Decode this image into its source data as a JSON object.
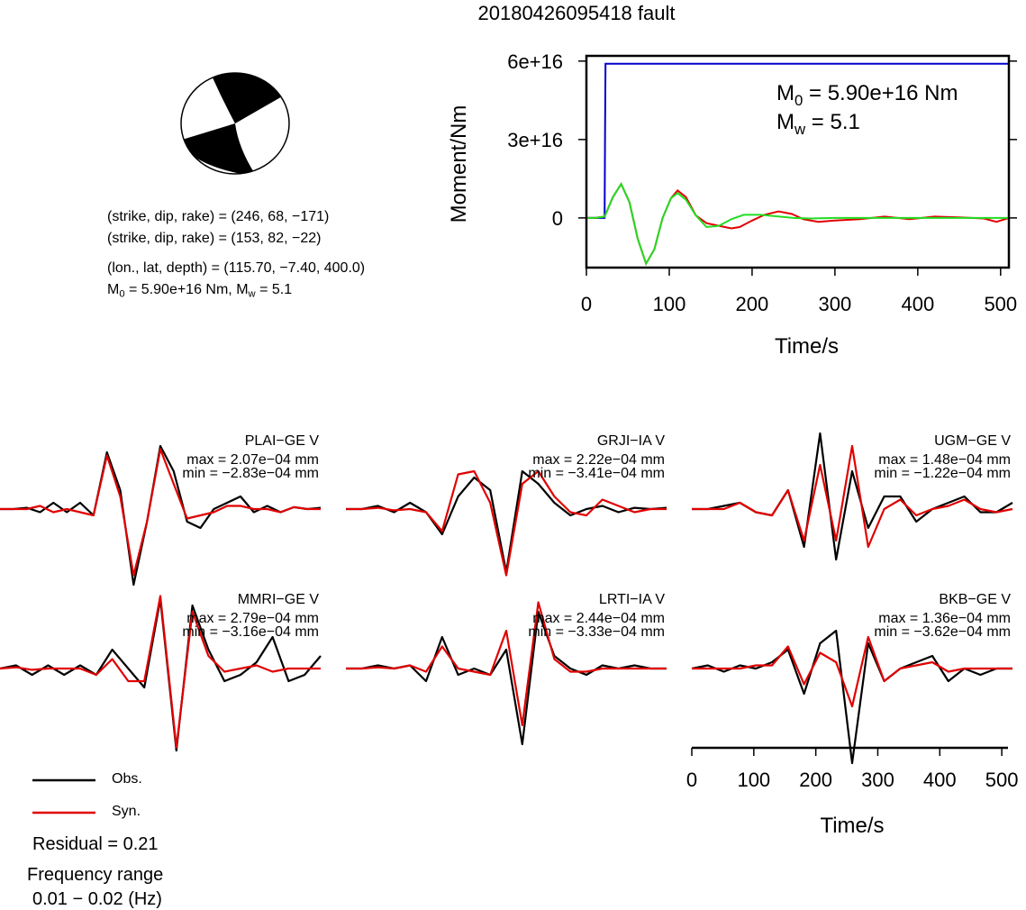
{
  "title": "20180426095418 fault",
  "mechanism": {
    "line1": "(strike, dip, rake) = (246, 68, −171)",
    "line2": "(strike, dip, rake) = (153, 82, −22)",
    "line3": "(lon., lat, depth) = (115.70, −7.40, 400.0)",
    "m0_label": "M",
    "m0_sub": "0",
    "m0_rest": " = 5.90e+16 Nm, M",
    "mw_sub": "w",
    "mw_rest": " = 5.1"
  },
  "colors": {
    "obs": "#000000",
    "syn": "#e00000",
    "mrf": "#0000cc",
    "green": "#22dd22"
  },
  "chart_data": [
    {
      "type": "line",
      "xlabel": "Time/s",
      "ylabel": "Moment/Nm",
      "xlim": [
        0,
        510
      ],
      "ylim": [
        -1.9e+16,
        6.2e+16
      ],
      "xticks": [
        0,
        100,
        200,
        300,
        400,
        500
      ],
      "yticks": [
        0,
        3e+16,
        6e+16
      ],
      "ytick_labels": [
        "0",
        "3e+16",
        "6e+16"
      ],
      "annotation": {
        "m0_text": "M",
        "m0_sub": "0",
        "m0_rest": " = 5.90e+16 Nm",
        "mw_text": "M",
        "mw_sub": "w",
        "mw_rest": " = 5.1"
      },
      "series": [
        {
          "color": "#0000cc",
          "x": [
            0,
            22,
            22.5,
            23,
            510
          ],
          "y": [
            0,
            0,
            3.3e+16,
            5.9e+16,
            5.9e+16
          ]
        },
        {
          "color": "#e00000",
          "x": [
            0,
            10,
            22,
            32,
            42,
            52,
            62,
            72,
            82,
            92,
            102,
            110,
            120,
            132,
            145,
            160,
            175,
            185,
            200,
            215,
            232,
            248,
            262,
            280,
            300,
            330,
            360,
            390,
            420,
            450,
            480,
            495,
            510
          ],
          "y": [
            0,
            0,
            500000000000000.0,
            8000000000000000.0,
            1.3e+16,
            6000000000000000.0,
            -8000000000000000.0,
            -1.75e+16,
            -1.2e+16,
            0,
            7500000000000000.0,
            1.05e+16,
            8000000000000000.0,
            1000000000000000.0,
            -2000000000000000.0,
            -3000000000000000.0,
            -4000000000000000.0,
            -3500000000000000.0,
            -1000000000000000.0,
            1200000000000000.0,
            2500000000000000.0,
            1500000000000000.0,
            -500000000000000.0,
            -1500000000000000.0,
            -1000000000000000.0,
            -500000000000000.0,
            500000000000000.0,
            -500000000000000.0,
            500000000000000.0,
            200000000000000.0,
            -200000000000000.0,
            -1500000000000000.0,
            0.0
          ]
        },
        {
          "color": "#22dd22",
          "x": [
            0,
            10,
            22,
            32,
            42,
            52,
            62,
            72,
            82,
            92,
            102,
            110,
            120,
            132,
            145,
            160,
            175,
            190,
            210,
            230,
            250,
            270,
            300,
            350,
            400,
            450,
            510
          ],
          "y": [
            0,
            0,
            500000000000000.0,
            8000000000000000.0,
            1.3e+16,
            6000000000000000.0,
            -8000000000000000.0,
            -1.75e+16,
            -1.2e+16,
            0,
            7500000000000000.0,
            9500000000000000.0,
            7000000000000000.0,
            1000000000000000.0,
            -3500000000000000.0,
            -3000000000000000.0,
            -500000000000000.0,
            1200000000000000.0,
            1200000000000000.0,
            600000000000000.0,
            0.0,
            -200000000000000.0,
            0,
            0,
            0,
            0,
            0
          ]
        }
      ]
    },
    {
      "type": "line",
      "xlabel": "Time/s",
      "xlim": [
        0,
        510
      ],
      "xticks": [
        0,
        100,
        200,
        300,
        400,
        500
      ],
      "stations": [
        {
          "name": "PLAI−GE V",
          "max_text": "max = 2.07e−04 mm",
          "min_text": "min = −2.83e−04 mm",
          "obs": [
            0,
            0,
            0.02,
            -0.05,
            0.1,
            -0.05,
            0.1,
            -0.1,
            0.9,
            0.3,
            -1.2,
            -0.2,
            1.0,
            0.6,
            -0.2,
            -0.3,
            0,
            0.1,
            0.2,
            -0.05,
            0.05,
            -0.05,
            0.03,
            0.0,
            0.02
          ],
          "syn": [
            0,
            0,
            0,
            0.05,
            -0.05,
            0,
            -0.05,
            -0.1,
            0.85,
            0.2,
            -1.05,
            -0.2,
            0.95,
            0.4,
            -0.15,
            -0.1,
            -0.05,
            0.05,
            0.05,
            0.0,
            0.0,
            -0.05,
            0.03,
            0.0,
            0.0
          ]
        },
        {
          "name": "GRJI−IA V",
          "max_text": "max = 2.22e−04 mm",
          "min_text": "min = −3.41e−04 mm",
          "obs": [
            0,
            0,
            0.05,
            -0.05,
            0.1,
            -0.05,
            -0.4,
            0.2,
            0.5,
            0.3,
            -1.0,
            0.6,
            0.4,
            0.1,
            -0.1,
            0.0,
            0.05,
            -0.05,
            0.02,
            0.0,
            0.02
          ],
          "syn": [
            0,
            0,
            0.02,
            -0.02,
            0.0,
            -0.05,
            -0.35,
            0.55,
            0.6,
            0.1,
            -1.05,
            0.4,
            0.6,
            0.2,
            -0.05,
            -0.1,
            0.15,
            0.05,
            -0.05,
            0.0,
            0.0
          ]
        },
        {
          "name": "UGM−GE V",
          "max_text": "max = 1.48e−04 mm",
          "min_text": "min = −1.22e−04 mm",
          "obs": [
            0,
            0,
            0.05,
            0.1,
            -0.05,
            -0.1,
            0.3,
            -0.6,
            1.2,
            -0.8,
            0.6,
            -0.3,
            0.2,
            0.2,
            -0.2,
            0.0,
            0.1,
            0.2,
            -0.05,
            -0.05,
            0.1
          ],
          "syn": [
            0,
            0,
            0.0,
            0.1,
            -0.05,
            -0.1,
            0.3,
            -0.5,
            0.7,
            -0.5,
            1.0,
            -0.6,
            0.0,
            0.15,
            -0.1,
            0.0,
            0.05,
            0.15,
            0.0,
            -0.05,
            0.0
          ]
        },
        {
          "name": "MMRI−GE V",
          "max_text": "max = 2.79e−04 mm",
          "min_text": "min = −3.16e−04 mm",
          "obs": [
            0,
            0.05,
            -0.1,
            0.05,
            -0.1,
            0.05,
            -0.1,
            0.3,
            0.0,
            -0.3,
            1.1,
            -1.3,
            1.0,
            0.3,
            -0.2,
            -0.1,
            0.1,
            0.5,
            -0.2,
            -0.1,
            0.2
          ],
          "syn": [
            0,
            0.02,
            -0.02,
            0.0,
            0.0,
            0.0,
            -0.1,
            0.15,
            -0.2,
            -0.2,
            1.15,
            -1.25,
            0.9,
            0.2,
            -0.05,
            0.0,
            0.05,
            -0.05,
            0.0,
            0.0,
            0.0
          ]
        },
        {
          "name": "LRTI−IA V",
          "max_text": "max = 2.44e−04 mm",
          "min_text": "min = −3.33e−04 mm",
          "obs": [
            0,
            0,
            0.05,
            0.0,
            0.05,
            -0.2,
            0.5,
            -0.1,
            0.0,
            -0.1,
            0.3,
            -1.2,
            0.9,
            0.2,
            0.0,
            -0.1,
            0.05,
            0.0,
            0.05,
            0.0,
            0.0
          ],
          "syn": [
            0,
            0,
            0.02,
            0.0,
            0.05,
            -0.05,
            0.35,
            0.0,
            -0.05,
            -0.1,
            0.6,
            -0.9,
            1.05,
            0.15,
            -0.05,
            -0.05,
            0.0,
            0.0,
            0.0,
            0.0,
            0.0
          ]
        },
        {
          "name": "BKB−GE V",
          "max_text": "max = 1.36e−04 mm",
          "min_text": "min = −3.62e−04 mm",
          "obs": [
            0,
            0.05,
            -0.05,
            0.05,
            0.0,
            0.1,
            0.3,
            -0.4,
            0.4,
            0.6,
            -1.5,
            0.4,
            -0.2,
            0.0,
            0.1,
            0.2,
            -0.2,
            0.0,
            -0.1,
            0.0,
            0.0
          ],
          "syn": [
            0,
            0.0,
            0.0,
            0.0,
            0.05,
            0.05,
            0.35,
            -0.25,
            0.25,
            0.1,
            -0.6,
            0.5,
            -0.2,
            0.0,
            0.05,
            0.1,
            -0.05,
            0.0,
            0.0,
            0.0,
            0.0
          ]
        }
      ]
    }
  ],
  "legend": {
    "obs_label": "Obs.",
    "syn_label": "Syn."
  },
  "footer": {
    "residual": "Residual = 0.21",
    "freq_title": "Frequency range",
    "freq_range": "0.01 − 0.02 (Hz)"
  }
}
